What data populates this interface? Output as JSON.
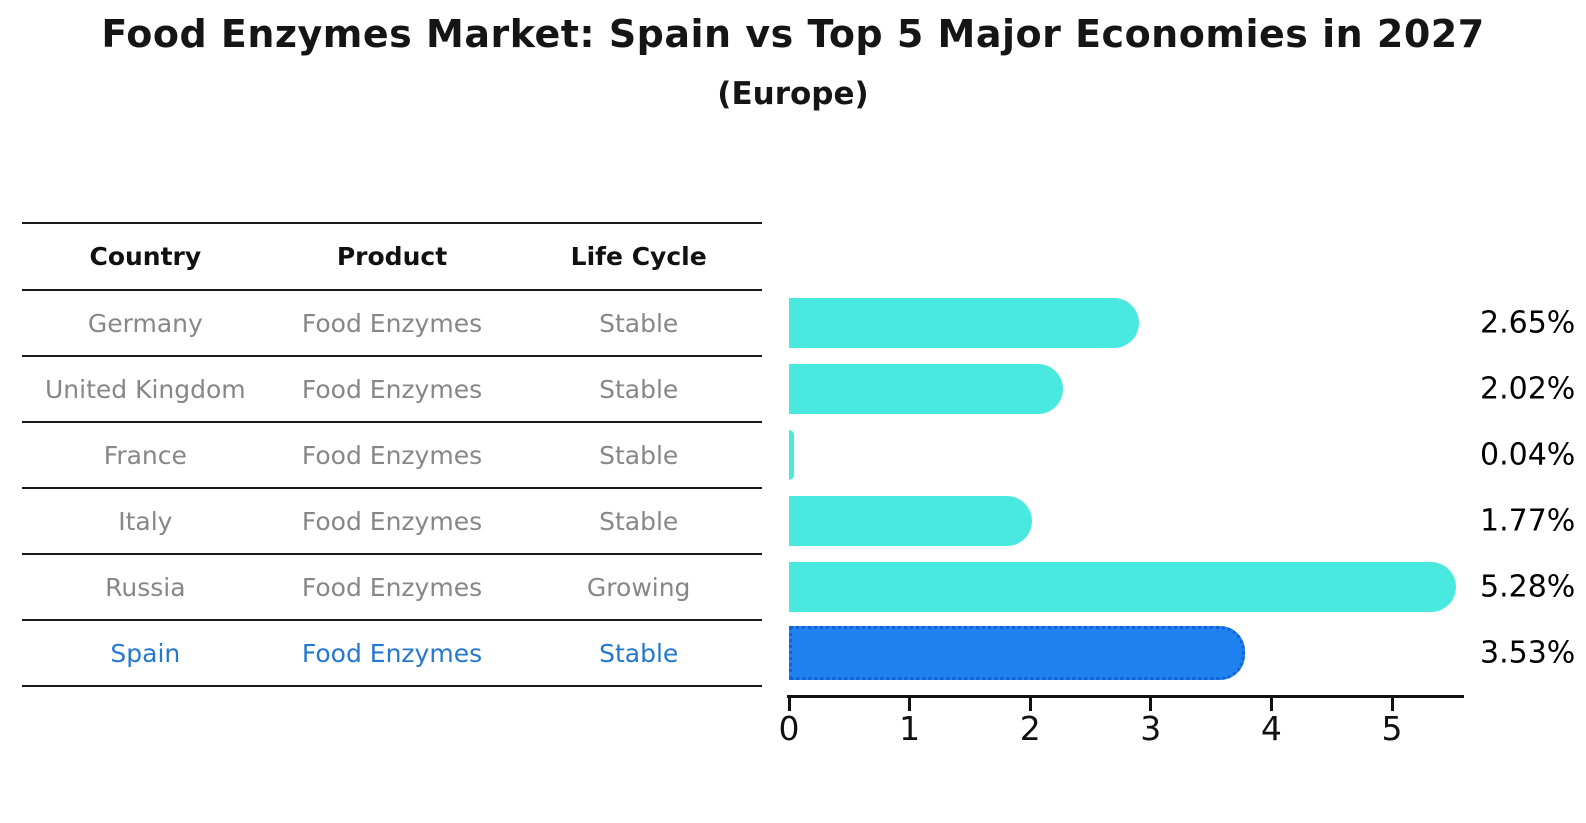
{
  "title": "Food Enzymes Market: Spain vs Top 5 Major Economies in 2027",
  "subtitle": "(Europe)",
  "table": {
    "columns": [
      "Country",
      "Product",
      "Life Cycle"
    ],
    "rows": [
      {
        "country": "Germany",
        "product": "Food Enzymes",
        "life_cycle": "Stable",
        "highlight": false
      },
      {
        "country": "United Kingdom",
        "product": "Food Enzymes",
        "life_cycle": "Stable",
        "highlight": false
      },
      {
        "country": "France",
        "product": "Food Enzymes",
        "life_cycle": "Stable",
        "highlight": false
      },
      {
        "country": "Italy",
        "product": "Food Enzymes",
        "life_cycle": "Stable",
        "highlight": false
      },
      {
        "country": "Russia",
        "product": "Food Enzymes",
        "life_cycle": "Growing",
        "highlight": false
      },
      {
        "country": "Spain",
        "product": "Food Enzymes",
        "life_cycle": "Stable",
        "highlight": true
      }
    ]
  },
  "chart_data": {
    "type": "bar",
    "orientation": "horizontal",
    "title": "Food Enzymes Market: Spain vs Top 5 Major Economies in 2027",
    "subtitle": "(Europe)",
    "categories": [
      "Germany",
      "United Kingdom",
      "France",
      "Italy",
      "Russia",
      "Spain"
    ],
    "values": [
      2.65,
      2.02,
      0.04,
      1.77,
      5.28,
      3.53
    ],
    "value_labels": [
      "2.65%",
      "2.02%",
      "0.04%",
      "1.77%",
      "5.28%",
      "3.53%"
    ],
    "xlabel": "",
    "ylabel": "",
    "xlim": [
      0,
      5.6
    ],
    "x_ticks": [
      0,
      1,
      2,
      3,
      4,
      5
    ],
    "grid": false,
    "legend": false,
    "highlight_category": "Spain",
    "highlight_index": 5
  },
  "colors": {
    "bar_default": "#49E9E0",
    "bar_highlight": "#1E82F0",
    "bar_highlight_border": "#1262D4",
    "table_text": "#878787",
    "table_highlight_text": "#2478D0",
    "axis": "#111111",
    "title_text": "#151515"
  }
}
